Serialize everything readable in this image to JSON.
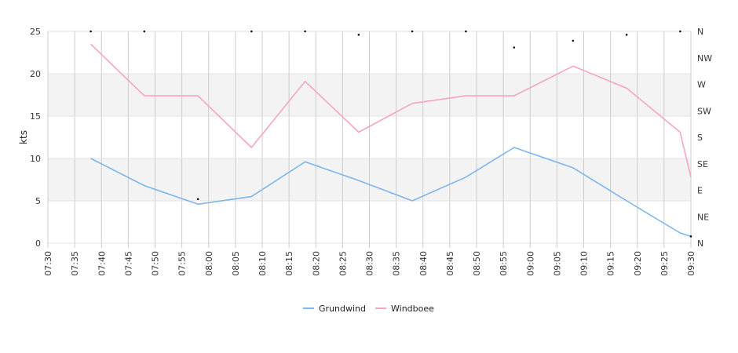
{
  "chart_data": {
    "type": "line",
    "ylabel": "kts",
    "ylim": [
      0,
      25
    ],
    "y_ticks": [
      0,
      5,
      10,
      15,
      20,
      25
    ],
    "x_range": [
      "07:30",
      "09:30"
    ],
    "x_ticks": [
      "07:30",
      "07:35",
      "07:40",
      "07:45",
      "07:50",
      "07:55",
      "08:00",
      "08:05",
      "08:10",
      "08:15",
      "08:20",
      "08:25",
      "08:30",
      "08:35",
      "08:40",
      "08:45",
      "08:50",
      "08:55",
      "09:00",
      "09:05",
      "09:10",
      "09:15",
      "09:20",
      "09:25",
      "09:30"
    ],
    "direction_axis": {
      "labels": [
        "N",
        "NE",
        "E",
        "SE",
        "S",
        "SW",
        "W",
        "NW",
        "N"
      ]
    },
    "grid": true,
    "bands": [
      [
        5,
        10
      ],
      [
        15,
        20
      ]
    ],
    "legend_position": "bottom",
    "series": [
      {
        "name": "Grundwind",
        "color": "#7cb5ec",
        "x": [
          "07:38",
          "07:48",
          "07:58",
          "08:08",
          "08:18",
          "08:28",
          "08:38",
          "08:48",
          "08:57",
          "09:08",
          "09:18",
          "09:28",
          "09:30"
        ],
        "values": [
          10.0,
          6.8,
          4.6,
          5.5,
          9.6,
          7.4,
          5.0,
          7.8,
          11.3,
          8.9,
          5.0,
          1.2,
          0.8
        ]
      },
      {
        "name": "Windboee",
        "color": "#f7a3c3",
        "x": [
          "07:38",
          "07:48",
          "07:58",
          "08:08",
          "08:18",
          "08:28",
          "08:38",
          "08:48",
          "08:57",
          "09:08",
          "09:18",
          "09:28",
          "09:30"
        ],
        "values": [
          23.5,
          17.4,
          17.4,
          11.3,
          19.1,
          13.1,
          16.5,
          17.4,
          17.4,
          20.9,
          18.3,
          13.1,
          7.8
        ]
      }
    ],
    "direction_points": {
      "x": [
        "07:38",
        "07:48",
        "07:58",
        "08:08",
        "08:18",
        "08:28",
        "08:38",
        "08:48",
        "08:57",
        "09:08",
        "09:18",
        "09:28",
        "09:30"
      ],
      "values": [
        25.0,
        25.0,
        5.2,
        25.0,
        25.0,
        24.6,
        25.0,
        25.0,
        23.1,
        23.9,
        24.6,
        25.0,
        0.8
      ]
    }
  }
}
